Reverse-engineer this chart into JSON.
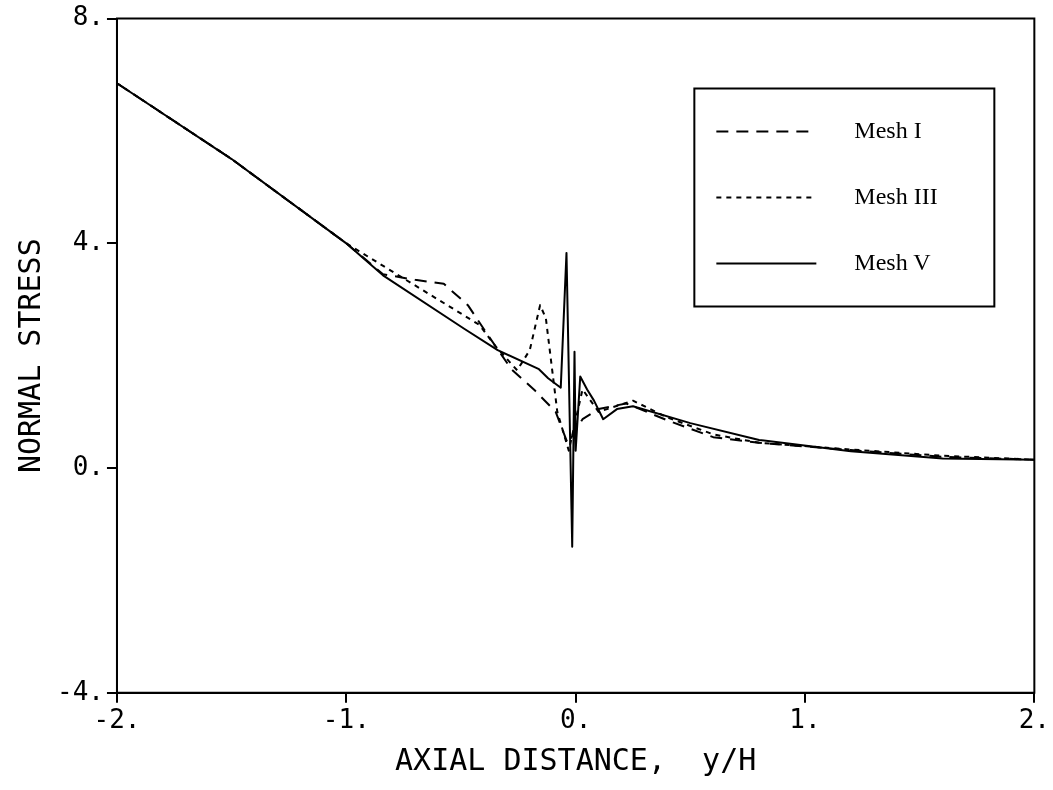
{
  "chart_data": {
    "type": "line",
    "xlabel": "AXIAL DISTANCE,  y/H",
    "ylabel": "NORMAL STRESS",
    "xlim": [
      -2,
      2
    ],
    "ylim": [
      -4,
      8
    ],
    "xticks": [
      {
        "value": -2,
        "label": "-2."
      },
      {
        "value": -1,
        "label": "-1."
      },
      {
        "value": 0,
        "label": "0."
      },
      {
        "value": 1,
        "label": "1."
      },
      {
        "value": 2,
        "label": "2."
      }
    ],
    "yticks": [
      {
        "value": -4,
        "label": "-4."
      },
      {
        "value": 0,
        "label": "0."
      },
      {
        "value": 4,
        "label": "4."
      },
      {
        "value": 8,
        "label": "8."
      }
    ],
    "grid": false,
    "legend": "top right",
    "marker": "none",
    "series": [
      {
        "name": "Mesh I",
        "color": "#000000",
        "line_style": "dashed",
        "x": [
          -2,
          -1.5,
          -1.0,
          -0.84,
          -0.7,
          -0.575,
          -0.47,
          -0.38,
          -0.28,
          -0.175,
          -0.087,
          -0.035,
          0.03,
          0.1,
          0.22,
          0.4,
          0.6,
          0.8,
          1.2,
          1.6,
          2.0
        ],
        "values": [
          6.85,
          5.5,
          4.0,
          3.45,
          3.35,
          3.28,
          2.9,
          2.35,
          1.76,
          1.37,
          1.0,
          0.44,
          0.87,
          1.05,
          1.15,
          0.85,
          0.55,
          0.45,
          0.32,
          0.2,
          0.15
        ]
      },
      {
        "name": "Mesh III",
        "color": "#000000",
        "line_style": "dotted",
        "x": [
          -2,
          -1.5,
          -1.0,
          -0.6,
          -0.42,
          -0.35,
          -0.255,
          -0.2,
          -0.155,
          -0.13,
          -0.08,
          -0.03,
          0.03,
          0.1,
          0.25,
          0.4,
          0.6,
          0.8,
          1.2,
          1.6,
          2.0
        ],
        "values": [
          6.85,
          5.5,
          4.0,
          3.0,
          2.55,
          2.17,
          1.74,
          2.1,
          2.9,
          2.67,
          1.0,
          0.31,
          1.4,
          1.0,
          1.2,
          0.9,
          0.6,
          0.45,
          0.33,
          0.22,
          0.15
        ]
      },
      {
        "name": "Mesh V",
        "color": "#000000",
        "line_style": "solid",
        "x": [
          -2,
          -1.5,
          -1.0,
          -0.84,
          -0.486,
          -0.34,
          -0.16,
          -0.12,
          -0.065,
          -0.04,
          -0.015,
          -0.005,
          0.0,
          0.02,
          0.05,
          0.08,
          0.12,
          0.18,
          0.25,
          0.5,
          0.8,
          1.2,
          1.6,
          2.0
        ],
        "values": [
          6.85,
          5.5,
          4.0,
          3.43,
          2.48,
          2.1,
          1.76,
          1.6,
          1.43,
          3.83,
          -1.4,
          2.07,
          0.31,
          1.63,
          1.4,
          1.2,
          0.87,
          1.05,
          1.1,
          0.8,
          0.5,
          0.3,
          0.17,
          0.15
        ]
      }
    ]
  }
}
